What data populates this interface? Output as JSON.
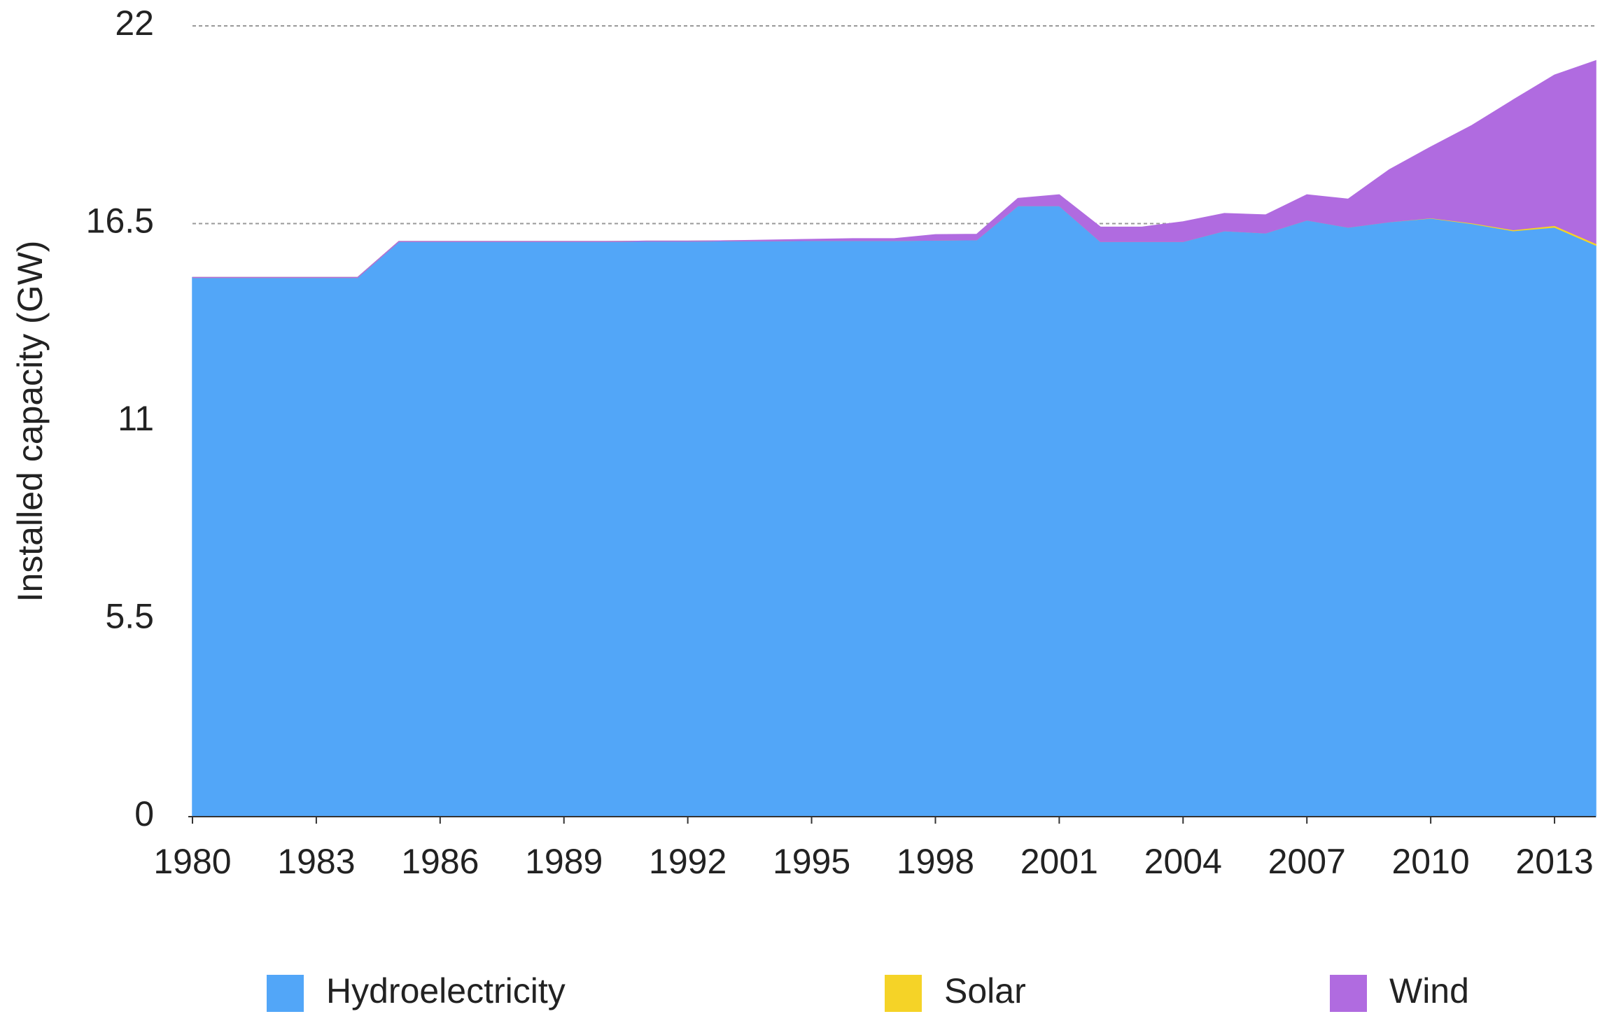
{
  "chart_data": {
    "type": "stacked_area",
    "y_label": "Installed capacity (GW)",
    "x": [
      1980,
      1981,
      1982,
      1983,
      1984,
      1985,
      1986,
      1987,
      1988,
      1989,
      1990,
      1991,
      1992,
      1993,
      1994,
      1995,
      1996,
      1997,
      1998,
      1999,
      2000,
      2001,
      2002,
      2003,
      2004,
      2005,
      2006,
      2007,
      2008,
      2009,
      2010,
      2011,
      2012,
      2013,
      2014
    ],
    "xlim": [
      1980,
      2014
    ],
    "xticks": [
      1980,
      1983,
      1986,
      1989,
      1992,
      1995,
      1998,
      2001,
      2004,
      2007,
      2010,
      2013
    ],
    "ylim": [
      0,
      22
    ],
    "yticks": [
      0,
      5.5,
      11,
      16.5,
      22
    ],
    "grid": true,
    "legend": "bottom",
    "series": [
      {
        "name": "Hydroelectricity",
        "color": "#52a6f8",
        "values": [
          15.0,
          15.0,
          15.0,
          15.0,
          15.0,
          16.0,
          16.0,
          16.0,
          16.0,
          16.0,
          16.0,
          16.01,
          16.01,
          16.02,
          16.02,
          16.03,
          16.03,
          16.03,
          16.04,
          16.05,
          17.0,
          17.0,
          16.0,
          16.0,
          16.0,
          16.3,
          16.24,
          16.6,
          16.4,
          16.55,
          16.65,
          16.5,
          16.3,
          16.4,
          15.9
        ]
      },
      {
        "name": "Solar",
        "color": "#f5d327",
        "values": [
          0,
          0,
          0,
          0,
          0,
          0,
          0,
          0,
          0,
          0,
          0,
          0,
          0,
          0,
          0,
          0,
          0,
          0,
          0,
          0,
          0,
          0,
          0,
          0,
          0,
          0,
          0,
          0,
          0,
          0,
          0.01,
          0.02,
          0.03,
          0.05,
          0.05
        ]
      },
      {
        "name": "Wind",
        "color": "#b06be0",
        "values": [
          0,
          0,
          0,
          0,
          0,
          0,
          0,
          0,
          0,
          0,
          0,
          0,
          0,
          0,
          0.02,
          0.03,
          0.05,
          0.05,
          0.15,
          0.15,
          0.2,
          0.3,
          0.4,
          0.4,
          0.55,
          0.48,
          0.5,
          0.7,
          0.78,
          1.45,
          1.97,
          2.71,
          3.61,
          4.18,
          5.08
        ]
      }
    ]
  }
}
